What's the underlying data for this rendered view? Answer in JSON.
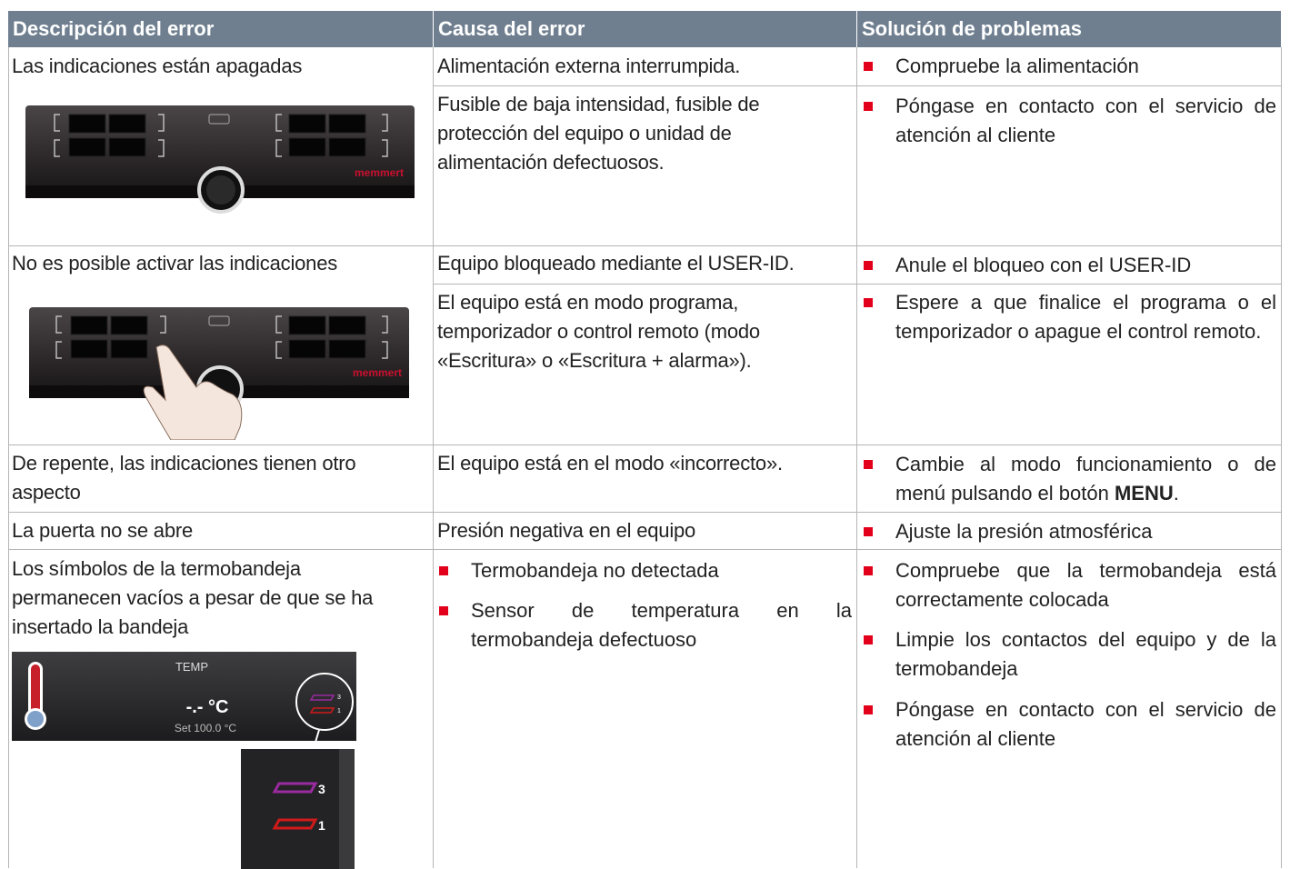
{
  "table": {
    "header": [
      "Descripción del error",
      "Causa del error",
      "Solución de problemas"
    ],
    "rows": [
      {
        "description": "Las indicaciones están apagadas",
        "cells": [
          {
            "cause": "Alimentación externa interrumpida.",
            "solutions": [
              "Compruebe la alimentación"
            ]
          },
          {
            "cause": "Fusible de baja intensidad, fusible de protección del equipo o unidad de alimentación defectuosos.",
            "solutions": [
              "Póngase en contacto con el servicio de atención al cliente"
            ]
          }
        ]
      },
      {
        "description": "No es posible activar las indicaciones",
        "cells": [
          {
            "cause": "Equipo bloqueado mediante el USER-ID.",
            "solutions": [
              "Anule el bloqueo con el USER-ID"
            ]
          },
          {
            "cause": "El equipo está en modo programa, temporizador o control remoto (modo «Escritura» o «Escritura + alarma»).",
            "solutions": [
              "Espere a que finalice el programa o el temporizador o apague el control remoto."
            ]
          }
        ]
      },
      {
        "description": "De repente, las indicaciones tienen otro aspecto",
        "cells": [
          {
            "cause": "El equipo está en el modo «incorrecto».",
            "solution_parts": [
              "Cambie al modo funcionamiento o de menú pulsando el botón ",
              "MENU",
              "."
            ]
          }
        ]
      },
      {
        "description": "La puerta no se abre",
        "cells": [
          {
            "cause": "Presión negativa en el equipo",
            "solutions": [
              "Ajuste la presión atmosférica"
            ]
          }
        ]
      },
      {
        "description": "Los símbolos de la termobandeja permanecen vacíos a pesar de que se ha insertado la bandeja",
        "cells": [
          {
            "cause_items": [
              "Termobandeja no detectada",
              "Sensor de temperatura en la termobandeja defectuoso"
            ],
            "solutions": [
              "Compruebe que la termobandeja está correctamente colocada",
              "Limpie los contactos del equipo y de la termobandeja",
              "Póngase en contacto con el servicio de atención al cliente"
            ]
          }
        ]
      }
    ]
  },
  "images": {
    "brand": "memmert",
    "temp_label": "TEMP",
    "temp_value": "-.- °C",
    "temp_set": "Set 100.0 °C",
    "tray_top": "3",
    "tray_bottom": "1"
  }
}
